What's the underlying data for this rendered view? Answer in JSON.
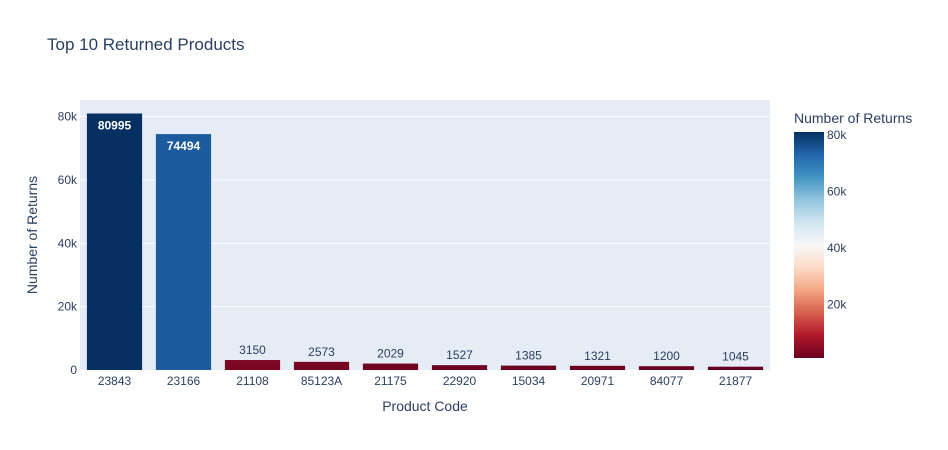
{
  "chart_data": {
    "type": "bar",
    "title": "Top 10 Returned Products",
    "xlabel": "Product Code",
    "ylabel": "Number of Returns",
    "categories": [
      "23843",
      "23166",
      "21108",
      "85123A",
      "21175",
      "22920",
      "15034",
      "20971",
      "84077",
      "21877"
    ],
    "values": [
      80995,
      74494,
      3150,
      2573,
      2029,
      1527,
      1385,
      1321,
      1200,
      1045
    ],
    "ylim": [
      0,
      85258
    ],
    "y_ticks": [
      0,
      20000,
      40000,
      60000,
      80000
    ],
    "y_tick_labels": [
      "0",
      "20k",
      "40k",
      "60k",
      "80k"
    ],
    "grid": true,
    "colorscale": "RdBu",
    "colorbar": {
      "title": "Number of Returns",
      "range": [
        1045,
        80995
      ],
      "ticks": [
        20000,
        40000,
        60000,
        80000
      ],
      "tick_labels": [
        "20k",
        "40k",
        "60k",
        "80k"
      ]
    }
  },
  "colors": {
    "plot_bg": "#e5ecf6",
    "grid": "#ffffff",
    "text": "#2a3f5f",
    "scale": [
      "#67001f",
      "#b2182b",
      "#d6604d",
      "#f4a582",
      "#fddbc7",
      "#f7f7f7",
      "#d1e5f0",
      "#92c5de",
      "#4393c3",
      "#2166ac",
      "#053061"
    ]
  }
}
